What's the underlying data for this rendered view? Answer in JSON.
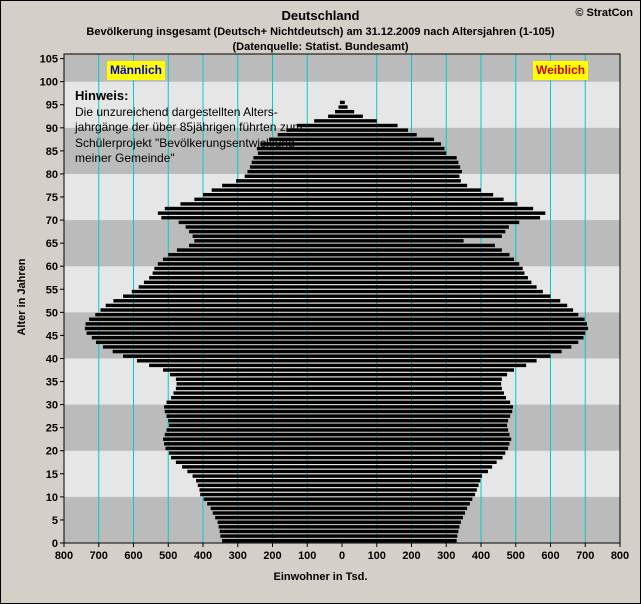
{
  "header": {
    "title": "Deutschland",
    "subtitle": "Bevölkerung  insgesamt (Deutsch+ Nichtdeutsch) am 31.12.2009 nach Altersjahren (1-105)",
    "source": "(Datenquelle: Statist. Bundesamt)",
    "copyright": "© StratCon"
  },
  "legend": {
    "male": "Männlich",
    "female": "Weiblich"
  },
  "note": {
    "title": "Hinweis:",
    "lines": [
      "Die unzureichend dargestellten Alters-",
      "jahrgänge der über 85jährigen führten zum",
      "Schülerprojekt \"Bevölkerungsentwicklung",
      "meiner Gemeinde\""
    ]
  },
  "colors": {
    "bar": "#000000",
    "gridline": "#00cccc",
    "band_light": "#e6e6e6",
    "band_dark": "#bbbbbb",
    "legend_bg": "#ffff00"
  },
  "chart_data": {
    "type": "bar",
    "orientation": "horizontal-pyramid",
    "xlabel": "Einwohner in Tsd.",
    "ylabel": "Alter in Jahren",
    "xlim": [
      -800,
      800
    ],
    "ylim": [
      0,
      106
    ],
    "x_tick_labels": [
      "800",
      "700",
      "600",
      "500",
      "400",
      "300",
      "200",
      "100",
      "0",
      "100",
      "200",
      "300",
      "400",
      "500",
      "600",
      "700",
      "800"
    ],
    "y_tick_labels": [
      "0",
      "5",
      "10",
      "15",
      "20",
      "25",
      "30",
      "35",
      "40",
      "45",
      "50",
      "55",
      "60",
      "65",
      "70",
      "75",
      "80",
      "85",
      "90",
      "95",
      "100",
      "105"
    ],
    "ages": [
      0,
      1,
      2,
      3,
      4,
      5,
      6,
      7,
      8,
      9,
      10,
      11,
      12,
      13,
      14,
      15,
      16,
      17,
      18,
      19,
      20,
      21,
      22,
      23,
      24,
      25,
      26,
      27,
      28,
      29,
      30,
      31,
      32,
      33,
      34,
      35,
      36,
      37,
      38,
      39,
      40,
      41,
      42,
      43,
      44,
      45,
      46,
      47,
      48,
      49,
      50,
      51,
      52,
      53,
      54,
      55,
      56,
      57,
      58,
      59,
      60,
      61,
      62,
      63,
      64,
      65,
      66,
      67,
      68,
      69,
      70,
      71,
      72,
      73,
      74,
      75,
      76,
      77,
      78,
      79,
      80,
      81,
      82,
      83,
      84,
      85,
      86,
      87,
      88,
      89,
      90,
      91,
      92,
      93,
      94,
      95
    ],
    "series": [
      {
        "name": "Männlich",
        "values": [
          345,
          350,
          352,
          355,
          358,
          365,
          372,
          378,
          388,
          398,
          408,
          410,
          415,
          420,
          430,
          445,
          460,
          478,
          492,
          498,
          508,
          512,
          515,
          510,
          505,
          498,
          500,
          505,
          510,
          512,
          505,
          492,
          485,
          478,
          476,
          478,
          495,
          515,
          555,
          590,
          630,
          660,
          688,
          708,
          720,
          735,
          740,
          738,
          728,
          710,
          695,
          680,
          658,
          630,
          605,
          585,
          570,
          555,
          545,
          540,
          530,
          515,
          500,
          475,
          440,
          425,
          430,
          440,
          450,
          470,
          520,
          530,
          510,
          465,
          425,
          400,
          375,
          345,
          305,
          280,
          272,
          265,
          260,
          255,
          242,
          245,
          235,
          210,
          185,
          160,
          130,
          80,
          40,
          20,
          10,
          6
        ]
      },
      {
        "name": "Weiblich",
        "values": [
          330,
          332,
          335,
          338,
          342,
          348,
          354,
          360,
          368,
          375,
          383,
          388,
          393,
          398,
          403,
          420,
          432,
          445,
          462,
          470,
          478,
          482,
          487,
          482,
          478,
          475,
          478,
          484,
          490,
          492,
          484,
          472,
          466,
          460,
          458,
          460,
          475,
          495,
          530,
          560,
          600,
          632,
          660,
          680,
          695,
          700,
          708,
          705,
          698,
          680,
          665,
          648,
          628,
          600,
          578,
          560,
          545,
          535,
          525,
          520,
          510,
          495,
          482,
          460,
          440,
          350,
          460,
          470,
          480,
          510,
          570,
          585,
          550,
          505,
          465,
          435,
          400,
          360,
          342,
          338,
          345,
          340,
          335,
          330,
          300,
          295,
          285,
          265,
          215,
          190,
          160,
          100,
          60,
          35,
          16,
          8
        ]
      }
    ]
  }
}
